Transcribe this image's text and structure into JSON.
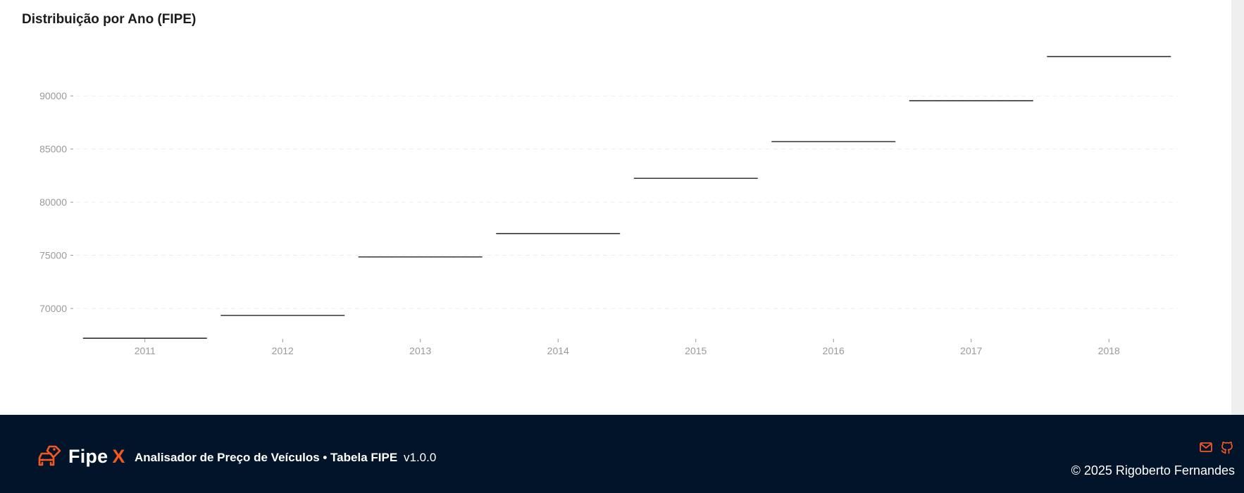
{
  "chart_data": {
    "type": "box",
    "title": "Distribuição por Ano (FIPE)",
    "xlabel": "",
    "ylabel": "",
    "categories": [
      "2011",
      "2012",
      "2013",
      "2014",
      "2015",
      "2016",
      "2017",
      "2018"
    ],
    "values": [
      67200,
      69350,
      74850,
      77050,
      82250,
      85700,
      89550,
      93700
    ],
    "y_ticks": [
      70000,
      75000,
      80000,
      85000,
      90000
    ],
    "ylim": [
      67150,
      95050
    ],
    "grid": true,
    "legend": "none"
  },
  "colors": {
    "accent": "#f4571f",
    "footer_bg": "#021429",
    "median_line": "#222222",
    "tick_text": "#9a9a9a",
    "grid": "#ededed"
  },
  "footer": {
    "brand_icon": "car-tag-icon",
    "brand_name": "Fipe",
    "brand_accent": "X",
    "tagline": "Analisador de Preço de Veículos • Tabela FIPE",
    "version": "v1.0.0",
    "icons": [
      "mail-icon",
      "github-icon"
    ],
    "copyright": "© 2025 Rigoberto Fernandes"
  }
}
